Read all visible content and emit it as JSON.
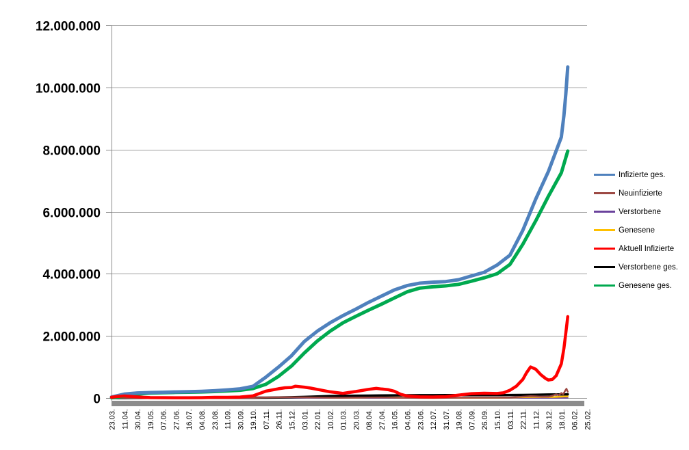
{
  "chart_data": {
    "type": "line",
    "title": "",
    "grid": "horizontal",
    "legend_position": "right",
    "y_axis": {
      "min": 0,
      "max": 12000000,
      "tick_interval": 2000000,
      "ticks": [
        {
          "value": 0,
          "label": "0"
        },
        {
          "value": 2000000,
          "label": "2.000.000"
        },
        {
          "value": 4000000,
          "label": "4.000.000"
        },
        {
          "value": 6000000,
          "label": "6.000.000"
        },
        {
          "value": 8000000,
          "label": "8.000.000"
        },
        {
          "value": 10000000,
          "label": "10.000.000"
        },
        {
          "value": 12000000,
          "label": "12.000.000"
        }
      ]
    },
    "x_axis": {
      "tick_labels": [
        "23.03.",
        "11.04.",
        "30.04.",
        "19.05.",
        "07.06.",
        "27.06.",
        "16.07.",
        "04.08.",
        "23.08.",
        "11.09.",
        "30.09.",
        "19.10.",
        "07.11.",
        "26.11.",
        "15.12.",
        "03.01.",
        "22.01.",
        "10.02.",
        "01.03.",
        "20.03.",
        "08.04.",
        "27.04.",
        "16.05.",
        "04.06.",
        "23.06.",
        "12.07.",
        "31.07.",
        "19.08.",
        "07.09.",
        "26.09.",
        "15.10.",
        "03.11.",
        "22.11.",
        "11.12.",
        "30.12.",
        "18.01.",
        "06.02.",
        "25.02."
      ]
    },
    "colors": {
      "gridline": "#9d9d9d",
      "axis": "#8a8a8a",
      "baseline_bar": "#8c8c8c",
      "label_text": "#000000"
    },
    "series": [
      {
        "name": "Infizierte ges.",
        "color": "#4F81BD",
        "width": 5,
        "points": [
          [
            0,
            30000
          ],
          [
            1,
            125000
          ],
          [
            2,
            163000
          ],
          [
            3,
            177000
          ],
          [
            4,
            186000
          ],
          [
            5,
            195000
          ],
          [
            6,
            202000
          ],
          [
            7,
            213000
          ],
          [
            8,
            233000
          ],
          [
            9,
            262000
          ],
          [
            10,
            295000
          ],
          [
            11,
            375000
          ],
          [
            12,
            670000
          ],
          [
            13,
            1000000
          ],
          [
            14,
            1360000
          ],
          [
            15,
            1820000
          ],
          [
            16,
            2150000
          ],
          [
            17,
            2420000
          ],
          [
            18,
            2650000
          ],
          [
            19,
            2860000
          ],
          [
            20,
            3080000
          ],
          [
            21,
            3280000
          ],
          [
            22,
            3480000
          ],
          [
            23,
            3620000
          ],
          [
            24,
            3700000
          ],
          [
            25,
            3730000
          ],
          [
            26,
            3750000
          ],
          [
            27,
            3810000
          ],
          [
            28,
            3930000
          ],
          [
            29,
            4050000
          ],
          [
            30,
            4280000
          ],
          [
            31,
            4600000
          ],
          [
            32,
            5400000
          ],
          [
            33,
            6400000
          ],
          [
            34,
            7300000
          ],
          [
            35,
            8400000
          ],
          [
            35.2,
            9100000
          ],
          [
            35.35,
            9800000
          ],
          [
            35.5,
            10660000
          ]
        ]
      },
      {
        "name": "Neuinfizierte",
        "color": "#9C4843",
        "width": 2.5,
        "points": [
          [
            0,
            3000
          ],
          [
            1,
            4500
          ],
          [
            2,
            2000
          ],
          [
            3,
            1200
          ],
          [
            5,
            1000
          ],
          [
            7,
            1200
          ],
          [
            9,
            2000
          ],
          [
            10,
            3000
          ],
          [
            11,
            7000
          ],
          [
            12,
            18000
          ],
          [
            13,
            22000
          ],
          [
            14,
            25000
          ],
          [
            15,
            22000
          ],
          [
            16,
            16000
          ],
          [
            17,
            10000
          ],
          [
            18,
            8000
          ],
          [
            19,
            13000
          ],
          [
            20,
            18000
          ],
          [
            21,
            20000
          ],
          [
            22,
            12000
          ],
          [
            23,
            6000
          ],
          [
            24,
            3000
          ],
          [
            25,
            2000
          ],
          [
            26,
            3500
          ],
          [
            27,
            8000
          ],
          [
            28,
            11000
          ],
          [
            29,
            10000
          ],
          [
            30,
            10500
          ],
          [
            31,
            18000
          ],
          [
            32,
            45000
          ],
          [
            32.6,
            60000
          ],
          [
            33,
            55000
          ],
          [
            33.5,
            45000
          ],
          [
            34,
            45000
          ],
          [
            34.3,
            75000
          ],
          [
            34.6,
            120000
          ],
          [
            34.8,
            90000
          ],
          [
            35,
            160000
          ],
          [
            35.15,
            120000
          ],
          [
            35.3,
            240000
          ],
          [
            35.4,
            300000
          ],
          [
            35.5,
            200000
          ]
        ]
      },
      {
        "name": "Verstorbene",
        "color": "#6A429C",
        "width": 2,
        "points": [
          [
            0,
            1500
          ],
          [
            10,
            1800
          ],
          [
            20,
            2000
          ],
          [
            30,
            2000
          ],
          [
            35.5,
            2200
          ]
        ]
      },
      {
        "name": "Genesene",
        "color": "#FFC000",
        "width": 2.5,
        "points": [
          [
            0,
            2000
          ],
          [
            1,
            4500
          ],
          [
            2,
            4000
          ],
          [
            3,
            2000
          ],
          [
            4,
            1200
          ],
          [
            6,
            1000
          ],
          [
            8,
            2000
          ],
          [
            10,
            3000
          ],
          [
            11,
            5000
          ],
          [
            12,
            12000
          ],
          [
            13,
            18000
          ],
          [
            14,
            22000
          ],
          [
            14.5,
            25000
          ],
          [
            15,
            24000
          ],
          [
            16,
            20000
          ],
          [
            17,
            14000
          ],
          [
            18,
            10000
          ],
          [
            19,
            12000
          ],
          [
            20,
            15000
          ],
          [
            21,
            15500
          ],
          [
            22,
            15000
          ],
          [
            23,
            9000
          ],
          [
            24,
            5000
          ],
          [
            25,
            3000
          ],
          [
            26,
            4000
          ],
          [
            27,
            7000
          ],
          [
            28,
            9000
          ],
          [
            29,
            8000
          ],
          [
            30,
            9000
          ],
          [
            31,
            14000
          ],
          [
            32,
            28000
          ],
          [
            33,
            35000
          ],
          [
            34,
            30000
          ],
          [
            34.5,
            32000
          ],
          [
            35,
            45000
          ],
          [
            35.5,
            55000
          ]
        ]
      },
      {
        "name": "Aktuell Infizierte",
        "color": "#FF0000",
        "width": 4.5,
        "points": [
          [
            0,
            25000
          ],
          [
            0.5,
            50000
          ],
          [
            1,
            66000
          ],
          [
            1.5,
            52000
          ],
          [
            2,
            35000
          ],
          [
            2.5,
            22000
          ],
          [
            3,
            14000
          ],
          [
            4,
            10000
          ],
          [
            5,
            8000
          ],
          [
            6,
            8000
          ],
          [
            7,
            12000
          ],
          [
            8,
            21000
          ],
          [
            9,
            23000
          ],
          [
            10,
            31000
          ],
          [
            11,
            68000
          ],
          [
            12,
            220000
          ],
          [
            13,
            300000
          ],
          [
            13.5,
            330000
          ],
          [
            14,
            340000
          ],
          [
            14.3,
            380000
          ],
          [
            15,
            350000
          ],
          [
            15.5,
            320000
          ],
          [
            16,
            280000
          ],
          [
            17,
            200000
          ],
          [
            18,
            150000
          ],
          [
            19,
            210000
          ],
          [
            20,
            280000
          ],
          [
            20.6,
            310000
          ],
          [
            21,
            290000
          ],
          [
            21.5,
            270000
          ],
          [
            22,
            220000
          ],
          [
            22.5,
            120000
          ],
          [
            23,
            65000
          ],
          [
            24,
            38000
          ],
          [
            25,
            32000
          ],
          [
            26,
            45000
          ],
          [
            27,
            95000
          ],
          [
            28,
            140000
          ],
          [
            29,
            155000
          ],
          [
            30,
            145000
          ],
          [
            30.5,
            170000
          ],
          [
            31,
            250000
          ],
          [
            31.5,
            380000
          ],
          [
            32,
            600000
          ],
          [
            32.3,
            820000
          ],
          [
            32.6,
            1000000
          ],
          [
            33,
            930000
          ],
          [
            33.4,
            750000
          ],
          [
            33.8,
            620000
          ],
          [
            34,
            580000
          ],
          [
            34.3,
            600000
          ],
          [
            34.6,
            720000
          ],
          [
            35,
            1100000
          ],
          [
            35.2,
            1600000
          ],
          [
            35.35,
            2100000
          ],
          [
            35.5,
            2620000
          ]
        ]
      },
      {
        "name": "Verstorbene ges.",
        "color": "#000000",
        "width": 3.5,
        "points": [
          [
            0,
            1000
          ],
          [
            2,
            6000
          ],
          [
            4,
            8500
          ],
          [
            6,
            9000
          ],
          [
            8,
            9300
          ],
          [
            10,
            9500
          ],
          [
            11,
            9800
          ],
          [
            12,
            11500
          ],
          [
            13,
            15000
          ],
          [
            14,
            24000
          ],
          [
            15,
            35000
          ],
          [
            16,
            51000
          ],
          [
            17,
            63000
          ],
          [
            18,
            70000
          ],
          [
            19,
            74500
          ],
          [
            20,
            78000
          ],
          [
            21,
            82500
          ],
          [
            22,
            86000
          ],
          [
            23,
            88500
          ],
          [
            24,
            90000
          ],
          [
            25,
            91000
          ],
          [
            26,
            91500
          ],
          [
            27,
            92000
          ],
          [
            28,
            92500
          ],
          [
            29,
            93500
          ],
          [
            30,
            94500
          ],
          [
            31,
            96000
          ],
          [
            32,
            100000
          ],
          [
            33,
            105000
          ],
          [
            34,
            111500
          ],
          [
            35,
            116000
          ],
          [
            35.5,
            119000
          ]
        ]
      },
      {
        "name": "Genesene ges.",
        "color": "#00A94F",
        "width": 5,
        "points": [
          [
            0,
            8000
          ],
          [
            1,
            58000
          ],
          [
            2,
            128000
          ],
          [
            3,
            158000
          ],
          [
            4,
            172000
          ],
          [
            5,
            180000
          ],
          [
            6,
            187000
          ],
          [
            7,
            196000
          ],
          [
            8,
            210000
          ],
          [
            9,
            228000
          ],
          [
            10,
            252000
          ],
          [
            11,
            305000
          ],
          [
            12,
            440000
          ],
          [
            13,
            700000
          ],
          [
            14,
            1030000
          ],
          [
            15,
            1450000
          ],
          [
            16,
            1830000
          ],
          [
            17,
            2150000
          ],
          [
            18,
            2420000
          ],
          [
            19,
            2630000
          ],
          [
            20,
            2830000
          ],
          [
            21,
            3020000
          ],
          [
            22,
            3220000
          ],
          [
            23,
            3420000
          ],
          [
            24,
            3540000
          ],
          [
            25,
            3580000
          ],
          [
            26,
            3610000
          ],
          [
            27,
            3660000
          ],
          [
            28,
            3760000
          ],
          [
            29,
            3870000
          ],
          [
            30,
            4000000
          ],
          [
            31,
            4300000
          ],
          [
            32,
            4950000
          ],
          [
            33,
            5700000
          ],
          [
            34,
            6500000
          ],
          [
            35,
            7250000
          ],
          [
            35.5,
            7950000
          ]
        ]
      }
    ],
    "draw_order": [
      2,
      3,
      5,
      1,
      6,
      0,
      4
    ]
  }
}
